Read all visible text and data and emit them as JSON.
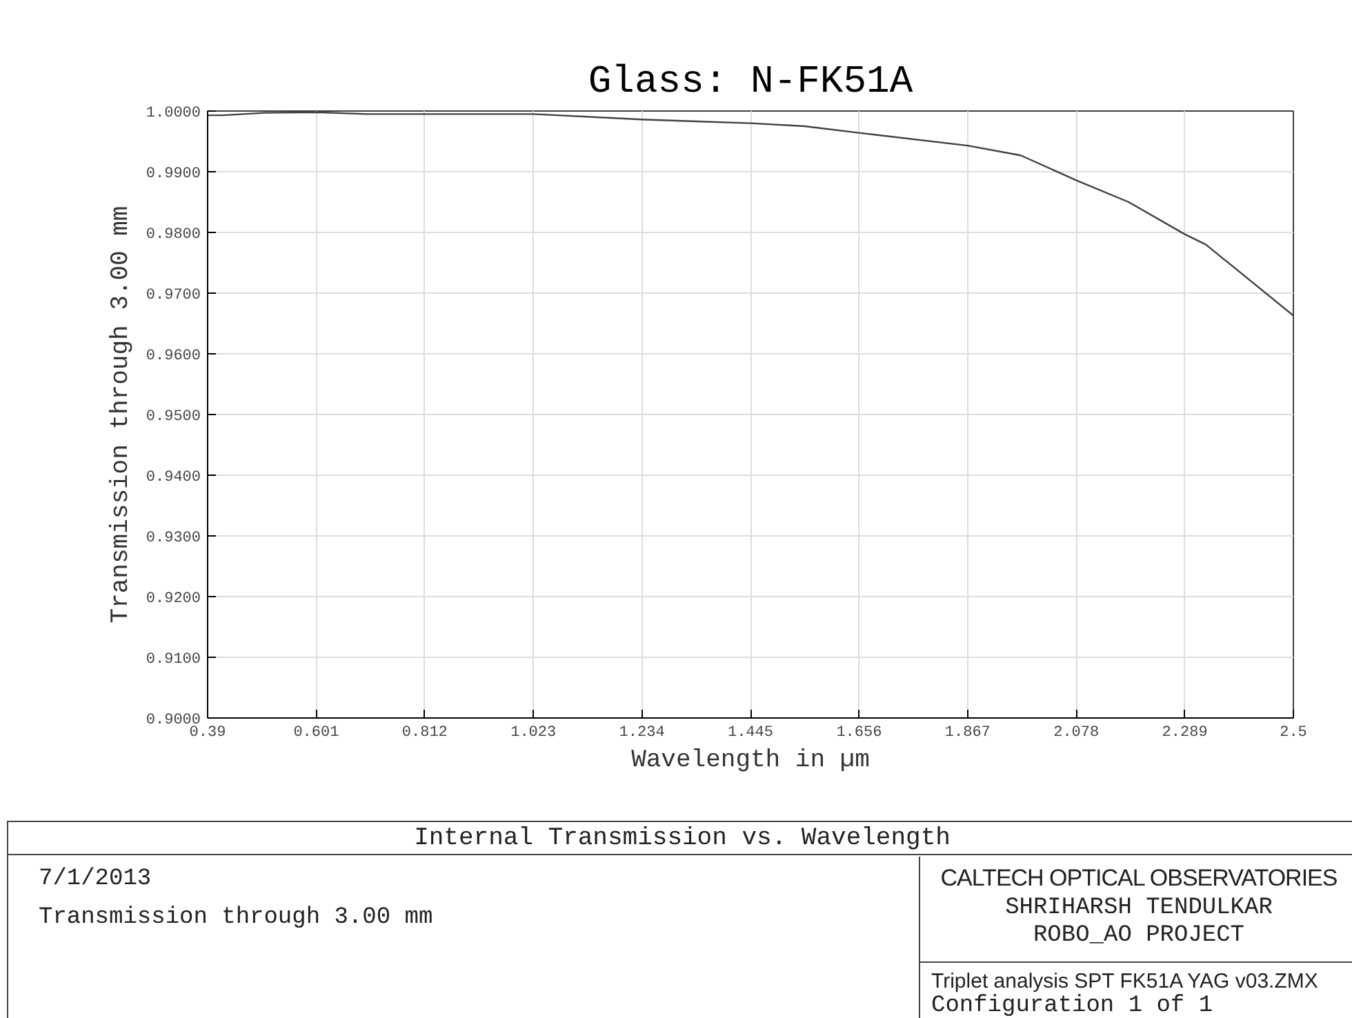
{
  "chart_data": {
    "type": "line",
    "title": "Glass: N-FK51A",
    "xlabel": "Wavelength in µm",
    "ylabel": "Transmission through 3.00 mm",
    "x": [
      0.39,
      0.42,
      0.5,
      0.601,
      0.7,
      0.85,
      1.023,
      1.234,
      1.445,
      1.55,
      1.656,
      1.867,
      1.97,
      2.078,
      2.18,
      2.289,
      2.33,
      2.5
    ],
    "series": [
      {
        "color": "#404040",
        "values": [
          0.9993,
          0.9993,
          0.9997,
          0.9998,
          0.9995,
          0.9995,
          0.9995,
          0.9986,
          0.998,
          0.9975,
          0.9964,
          0.9943,
          0.9927,
          0.9886,
          0.985,
          0.9797,
          0.978,
          0.9663
        ]
      }
    ],
    "xlim": [
      0.39,
      2.5
    ],
    "xticks": [
      0.39,
      0.601,
      0.812,
      1.023,
      1.234,
      1.445,
      1.656,
      1.867,
      2.078,
      2.289,
      2.5
    ],
    "ylim": [
      0.9,
      1.0
    ],
    "yticks": [
      {
        "value": 0.9,
        "label": "0.9000"
      },
      {
        "value": 0.91,
        "label": "0.9100"
      },
      {
        "value": 0.92,
        "label": "0.9200"
      },
      {
        "value": 0.93,
        "label": "0.9300"
      },
      {
        "value": 0.94,
        "label": "0.9400"
      },
      {
        "value": 0.95,
        "label": "0.9500"
      },
      {
        "value": 0.96,
        "label": "0.9600"
      },
      {
        "value": 0.97,
        "label": "0.9700"
      },
      {
        "value": 0.98,
        "label": "0.9800"
      },
      {
        "value": 0.99,
        "label": "0.9900"
      },
      {
        "value": 1.0,
        "label": "1.0000"
      }
    ],
    "grid": true,
    "annotations": [
      "Internal Transmission vs. Wavelength",
      "7/1/2013",
      "Transmission through 3.00 mm",
      "CALTECH OPTICAL OBSERVATORIES",
      "SHRIHARSH TENDULKAR",
      "ROBO_AO PROJECT",
      "Triplet analysis SPT FK51A YAG v03.ZMX",
      "Configuration 1 of 1"
    ]
  }
}
